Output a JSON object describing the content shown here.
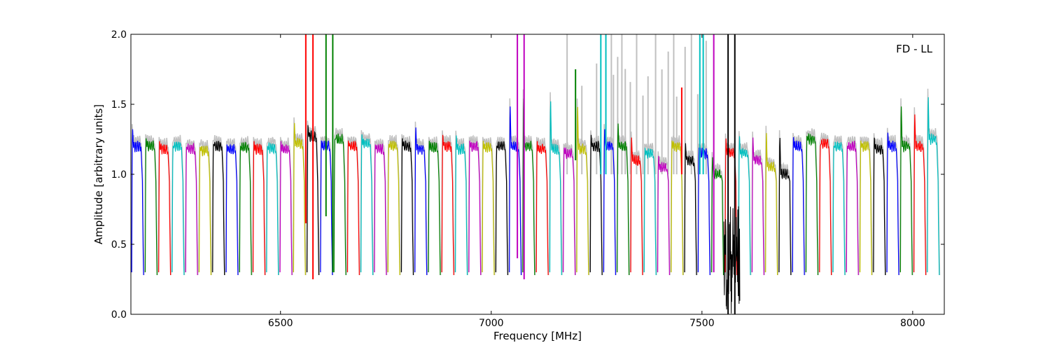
{
  "chart_data": {
    "type": "line",
    "title": "",
    "annotation": "FD - LL",
    "xlabel": "Frequency [MHz]",
    "ylabel": "Amplitude [arbitrary units]",
    "xlim": [
      6145,
      8075
    ],
    "ylim": [
      0,
      2.0
    ],
    "xticks": [
      6500,
      7000,
      7500,
      8000
    ],
    "xtick_labels": [
      "6500",
      "7000",
      "7500",
      "8000"
    ],
    "yticks": [
      0.0,
      0.5,
      1.0,
      1.5,
      2.0
    ],
    "ytick_labels": [
      "0.0",
      "0.5",
      "1.0",
      "1.5",
      "2.0"
    ],
    "grid": false,
    "channel_width_mhz": 32,
    "first_channel_start_mhz": 6145,
    "channel_count": 60,
    "color_cycle": [
      "#0000ff",
      "#008000",
      "#ff0000",
      "#00bfbf",
      "#bf00bf",
      "#bfbf00",
      "#000000"
    ],
    "background_color": "#c0c0c0",
    "channel_levels": [
      1.2,
      1.2,
      1.18,
      1.2,
      1.18,
      1.17,
      1.2,
      1.18,
      1.19,
      1.18,
      1.19,
      1.18,
      1.22,
      1.27,
      1.2,
      1.25,
      1.2,
      1.22,
      1.18,
      1.2,
      1.2,
      1.18,
      1.19,
      1.2,
      1.18,
      1.2,
      1.19,
      1.2,
      1.2,
      1.2,
      1.18,
      1.18,
      1.15,
      1.18,
      1.2,
      1.2,
      1.2,
      1.1,
      1.15,
      1.05,
      1.2,
      1.1,
      1.15,
      1.0,
      1.15,
      1.15,
      1.1,
      1.05,
      1.0,
      1.2,
      1.25,
      1.22,
      1.2,
      1.2,
      1.2,
      1.18,
      1.2,
      1.2,
      1.2,
      1.25
    ],
    "channel_peaks": [
      1.35,
      1.27,
      1.25,
      1.2,
      1.2,
      1.2,
      1.22,
      1.22,
      1.2,
      1.25,
      1.2,
      1.25,
      1.4,
      1.37,
      1.25,
      1.25,
      1.25,
      1.3,
      1.22,
      1.22,
      1.27,
      1.37,
      1.25,
      1.3,
      1.3,
      1.25,
      1.25,
      1.2,
      1.55,
      1.62,
      1.25,
      1.6,
      1.2,
      1.55,
      1.3,
      1.35,
      1.4,
      1.3,
      1.2,
      1.15,
      1.25,
      1.25,
      1.2,
      1.15,
      1.28,
      1.3,
      1.3,
      1.35,
      1.32,
      1.28,
      1.28,
      1.2,
      1.2,
      1.2,
      1.25,
      1.28,
      1.32,
      1.55,
      1.48,
      1.62
    ],
    "spikes": [
      {
        "x": 6560,
        "ymin": 0.65,
        "ymax": 2.0,
        "color": "#ff0000"
      },
      {
        "x": 6577,
        "ymin": 0.25,
        "ymax": 2.0,
        "color": "#ff0000"
      },
      {
        "x": 6608,
        "ymin": 0.7,
        "ymax": 2.0,
        "color": "#008000"
      },
      {
        "x": 6624,
        "ymin": 0.3,
        "ymax": 2.0,
        "color": "#008000"
      },
      {
        "x": 7062,
        "ymin": 0.4,
        "ymax": 2.0,
        "color": "#bf00bf"
      },
      {
        "x": 7078,
        "ymin": 0.25,
        "ymax": 2.0,
        "color": "#bf00bf"
      },
      {
        "x": 7200,
        "ymin": 1.1,
        "ymax": 1.75,
        "color": "#008000"
      },
      {
        "x": 7260,
        "ymin": 1.0,
        "ymax": 2.0,
        "color": "#00bfbf"
      },
      {
        "x": 7272,
        "ymin": 1.0,
        "ymax": 2.0,
        "color": "#00bfbf"
      },
      {
        "x": 7452,
        "ymin": 1.0,
        "ymax": 1.62,
        "color": "#ff0000"
      },
      {
        "x": 7495,
        "ymin": 1.0,
        "ymax": 2.0,
        "color": "#00bfbf"
      },
      {
        "x": 7503,
        "ymin": 1.0,
        "ymax": 2.0,
        "color": "#00bfbf"
      },
      {
        "x": 7528,
        "ymin": 0.3,
        "ymax": 2.0,
        "color": "#bf00bf"
      },
      {
        "x": 7562,
        "ymin": 0.0,
        "ymax": 2.0,
        "color": "#000000"
      },
      {
        "x": 7578,
        "ymin": 0.0,
        "ymax": 2.0,
        "color": "#000000"
      }
    ],
    "background_spikes_x": [
      7180,
      7215,
      7250,
      7285,
      7290,
      7300,
      7310,
      7318,
      7330,
      7345,
      7360,
      7372,
      7390,
      7405,
      7420,
      7433,
      7440,
      7460,
      7475,
      7490,
      7510
    ],
    "noisy_region": {
      "xmin": 7552,
      "xmax": 7590,
      "ymin": 0.0,
      "ymax": 0.8,
      "color": "#000000"
    }
  }
}
